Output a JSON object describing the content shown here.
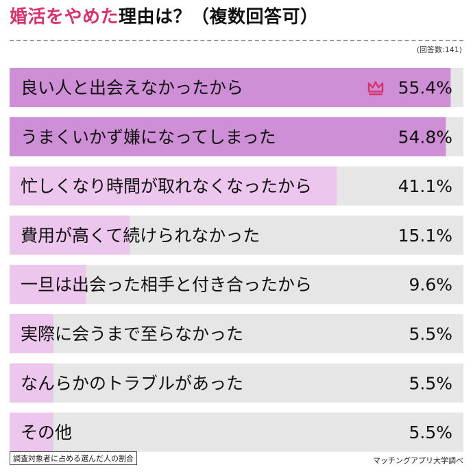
{
  "header": {
    "title_accent": "婚活をやめた",
    "title_rest": "理由は？（複数回答可）",
    "respondents": "(回答数:141)"
  },
  "footer": {
    "note": "調査対象者に占める選んだ人の割合",
    "source": "マッチングアプリ大学調べ"
  },
  "colors": {
    "accent": "#d6336c",
    "bar_track": "#e6e6e6",
    "bar_strong": "#cf8fd6",
    "bar_light": "#ecc6ec"
  },
  "chart_data": {
    "type": "bar",
    "orientation": "horizontal",
    "xlim": [
      0,
      57
    ],
    "categories": [
      "良い人と出会えなかったから",
      "うまくいかず嫌になってしまった",
      "忙しくなり時間が取れなくなったから",
      "費用が高くて続けられなかった",
      "一旦は出会った相手と付き合ったから",
      "実際に会うまで至らなかった",
      "なんらかのトラブルがあった",
      "その他"
    ],
    "values": [
      55.4,
      54.8,
      41.1,
      15.1,
      9.6,
      5.5,
      5.5,
      5.5
    ],
    "value_labels": [
      "55.4%",
      "54.8%",
      "41.1%",
      "15.1%",
      "9.6%",
      "5.5%",
      "5.5%",
      "5.5%"
    ],
    "top_marker_icon": "crown-icon"
  }
}
